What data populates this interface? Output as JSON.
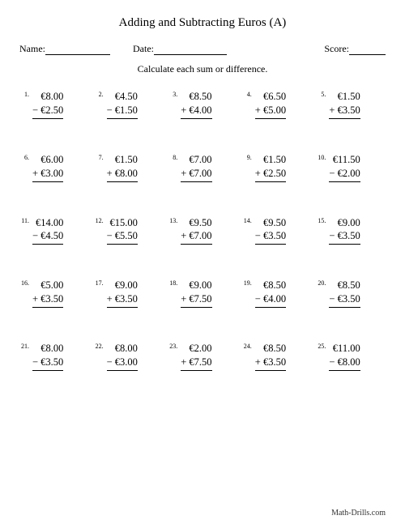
{
  "title": "Adding and Subtracting Euros (A)",
  "labels": {
    "name": "Name:",
    "date": "Date:",
    "score": "Score:"
  },
  "instruction": "Calculate each sum or difference.",
  "currency": "€",
  "underline_widths": {
    "name": 80,
    "date": 90,
    "score": 45
  },
  "problems": [
    {
      "n": 1,
      "a": "8.00",
      "b": "2.50",
      "op": "−"
    },
    {
      "n": 2,
      "a": "4.50",
      "b": "1.50",
      "op": "−"
    },
    {
      "n": 3,
      "a": "8.50",
      "b": "4.00",
      "op": "+"
    },
    {
      "n": 4,
      "a": "6.50",
      "b": "5.00",
      "op": "+"
    },
    {
      "n": 5,
      "a": "1.50",
      "b": "3.50",
      "op": "+"
    },
    {
      "n": 6,
      "a": "6.00",
      "b": "3.00",
      "op": "+"
    },
    {
      "n": 7,
      "a": "1.50",
      "b": "8.00",
      "op": "+"
    },
    {
      "n": 8,
      "a": "7.00",
      "b": "7.00",
      "op": "+"
    },
    {
      "n": 9,
      "a": "1.50",
      "b": "2.50",
      "op": "+"
    },
    {
      "n": 10,
      "a": "11.50",
      "b": "2.00",
      "op": "−"
    },
    {
      "n": 11,
      "a": "14.00",
      "b": "4.50",
      "op": "−"
    },
    {
      "n": 12,
      "a": "15.00",
      "b": "5.50",
      "op": "−"
    },
    {
      "n": 13,
      "a": "9.50",
      "b": "7.00",
      "op": "+"
    },
    {
      "n": 14,
      "a": "9.50",
      "b": "3.50",
      "op": "−"
    },
    {
      "n": 15,
      "a": "9.00",
      "b": "3.50",
      "op": "−"
    },
    {
      "n": 16,
      "a": "5.00",
      "b": "3.50",
      "op": "+"
    },
    {
      "n": 17,
      "a": "9.00",
      "b": "3.50",
      "op": "+"
    },
    {
      "n": 18,
      "a": "9.00",
      "b": "7.50",
      "op": "+"
    },
    {
      "n": 19,
      "a": "8.50",
      "b": "4.00",
      "op": "−"
    },
    {
      "n": 20,
      "a": "8.50",
      "b": "3.50",
      "op": "−"
    },
    {
      "n": 21,
      "a": "8.00",
      "b": "3.50",
      "op": "−"
    },
    {
      "n": 22,
      "a": "8.00",
      "b": "3.00",
      "op": "−"
    },
    {
      "n": 23,
      "a": "2.00",
      "b": "7.50",
      "op": "+"
    },
    {
      "n": 24,
      "a": "8.50",
      "b": "3.50",
      "op": "+"
    },
    {
      "n": 25,
      "a": "11.00",
      "b": "8.00",
      "op": "−"
    }
  ],
  "footer": "Math-Drills.com",
  "colors": {
    "text": "#000000",
    "background": "#ffffff"
  },
  "fonts": {
    "title_size": 15,
    "body_size": 12.5,
    "small_size": 8
  }
}
